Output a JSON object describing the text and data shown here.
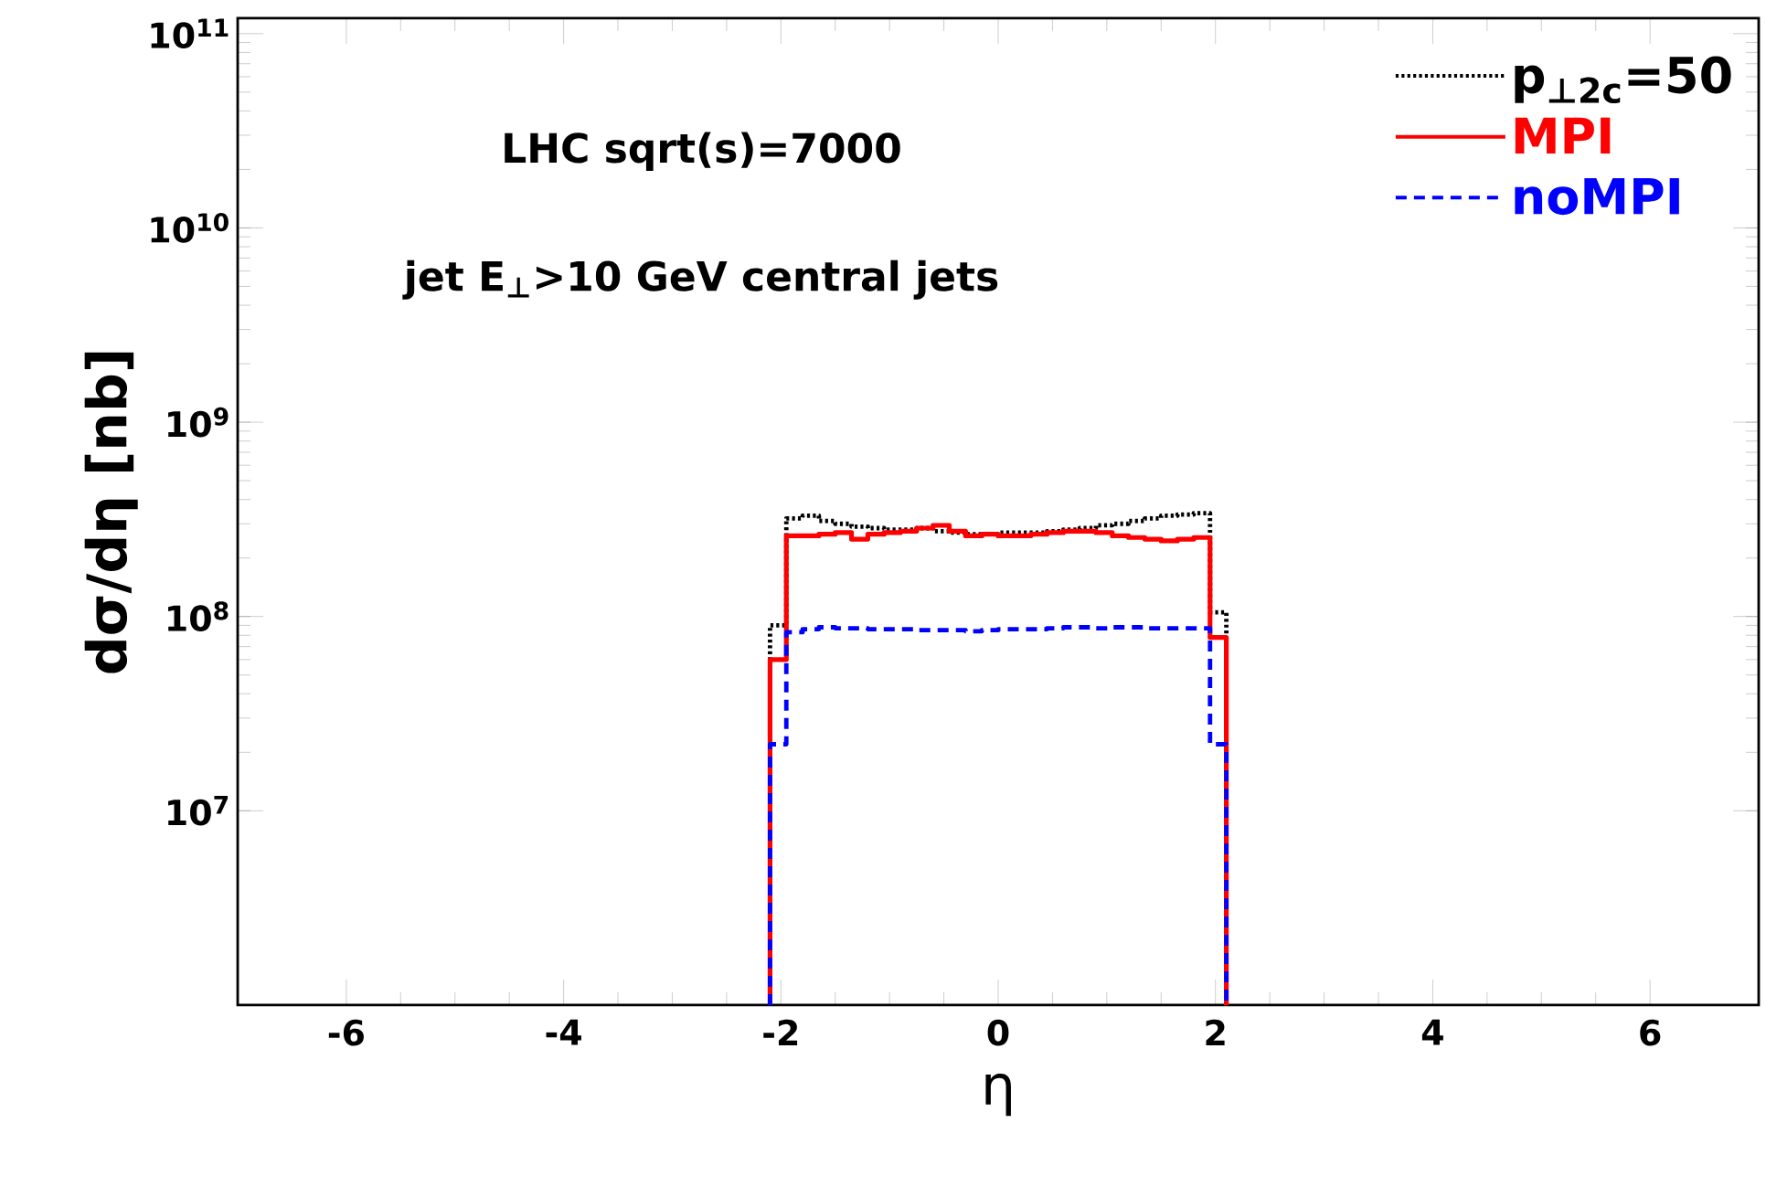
{
  "chart_data": {
    "type": "histogram",
    "xlabel": "η",
    "ylabel": "dσ/dη [nb]",
    "log": "y",
    "annotations": [
      "LHC sqrt(s)=7000",
      "jet E$_{⊥}$>10 GeV central jets"
    ],
    "bins": [
      -2.1,
      -1.95,
      -1.8,
      -1.65,
      -1.5,
      -1.35,
      -1.2,
      -1.05,
      -0.9,
      -0.75,
      -0.6,
      -0.45,
      -0.3,
      -0.15,
      0,
      0.15,
      0.3,
      0.45,
      0.6,
      0.75,
      0.9,
      1.05,
      1.2,
      1.35,
      1.5,
      1.65,
      1.8,
      1.95,
      2.1
    ],
    "series": [
      {
        "name": "p$_{⊥2c}$=50",
        "color": "#000000",
        "line_style": "dotted",
        "values": [
          90000000.0,
          320000000.0,
          330000000.0,
          310000000.0,
          300000000.0,
          290000000.0,
          285000000.0,
          280000000.0,
          280000000.0,
          285000000.0,
          275000000.0,
          270000000.0,
          265000000.0,
          265000000.0,
          270000000.0,
          270000000.0,
          270000000.0,
          275000000.0,
          280000000.0,
          285000000.0,
          295000000.0,
          300000000.0,
          310000000.0,
          320000000.0,
          330000000.0,
          335000000.0,
          340000000.0,
          105000000.0
        ]
      },
      {
        "name": "MPI",
        "color": "#ff0000",
        "line_style": "solid",
        "values": [
          60000000.0,
          260000000.0,
          260000000.0,
          265000000.0,
          270000000.0,
          250000000.0,
          265000000.0,
          270000000.0,
          275000000.0,
          285000000.0,
          295000000.0,
          275000000.0,
          260000000.0,
          265000000.0,
          260000000.0,
          260000000.0,
          265000000.0,
          270000000.0,
          275000000.0,
          275000000.0,
          270000000.0,
          260000000.0,
          255000000.0,
          250000000.0,
          245000000.0,
          250000000.0,
          255000000.0,
          78000000.0
        ]
      },
      {
        "name": "noMPI",
        "color": "#0000ff",
        "line_style": "dashed",
        "values": [
          22000000.0,
          83000000.0,
          86000000.0,
          88000000.0,
          87000000.0,
          87000000.0,
          86000000.0,
          86000000.0,
          86000000.0,
          85000000.0,
          85000000.0,
          85000000.0,
          84000000.0,
          85000000.0,
          86000000.0,
          86000000.0,
          86000000.0,
          87000000.0,
          88000000.0,
          88000000.0,
          87000000.0,
          88000000.0,
          88000000.0,
          87000000.0,
          87000000.0,
          87000000.0,
          87000000.0,
          22000000.0
        ]
      }
    ],
    "xlim": [
      -7,
      7
    ],
    "ylim": [
      1000000.0,
      120000000000.0
    ],
    "xticks": [
      -6,
      -4,
      -2,
      0,
      2,
      4,
      6
    ],
    "yticks": [
      {
        "value": 10000000.0,
        "label": "10$^{7}$"
      },
      {
        "value": 100000000.0,
        "label": "10$^{8}$"
      },
      {
        "value": 1000000000.0,
        "label": "10$^{9}$"
      },
      {
        "value": 10000000000.0,
        "label": "10$^{10}$"
      },
      {
        "value": 100000000000.0,
        "label": "10$^{11}$"
      }
    ],
    "legend": "top right"
  }
}
